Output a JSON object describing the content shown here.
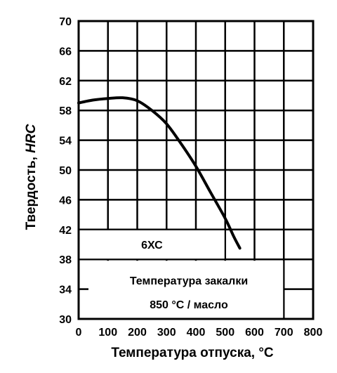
{
  "chart_data": {
    "type": "line",
    "xlabel": "Температура отпуска, °С",
    "ylabel_prefix": "Твердость, ",
    "ylabel_unit": "HRC",
    "xlim": [
      0,
      800
    ],
    "ylim": [
      30,
      70
    ],
    "x_ticks": [
      0,
      100,
      200,
      300,
      400,
      500,
      600,
      700,
      800
    ],
    "y_ticks": [
      30,
      34,
      38,
      42,
      46,
      50,
      54,
      58,
      62,
      66,
      70
    ],
    "grid": true,
    "series": [
      {
        "name": "6ХС",
        "x": [
          0,
          50,
          100,
          150,
          200,
          250,
          300,
          350,
          400,
          450,
          500,
          530,
          550
        ],
        "y": [
          59.0,
          59.4,
          59.6,
          59.7,
          59.3,
          58.0,
          56.2,
          53.5,
          50.5,
          47.0,
          43.5,
          41.0,
          39.5
        ]
      }
    ],
    "annotation": {
      "line1": "Температура закалки",
      "line2": "850 °С / масло"
    }
  }
}
